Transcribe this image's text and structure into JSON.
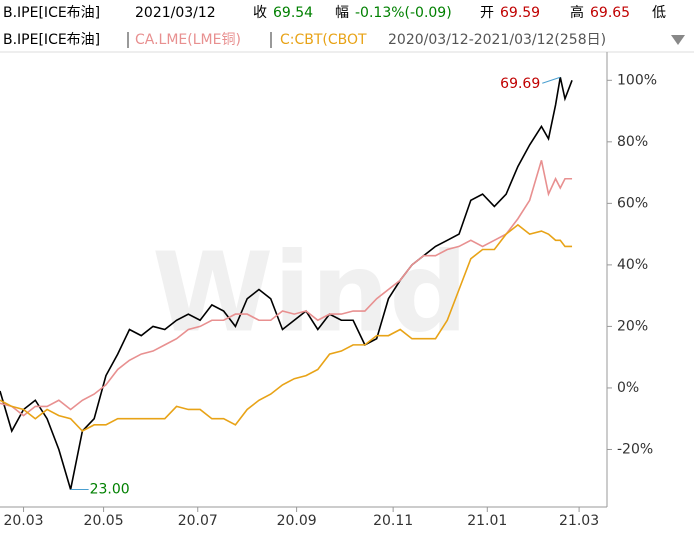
{
  "header": {
    "symbol": "B.IPE[ICE布油]",
    "date": "2021/03/12",
    "items": [
      {
        "label": "收",
        "value": "69.54",
        "color": "#008000"
      },
      {
        "label": "幅",
        "value": "-0.13%(-0.09)",
        "color": "#008000"
      },
      {
        "label": "开",
        "value": "69.59",
        "color": "#c00000"
      },
      {
        "label": "高",
        "value": "69.65",
        "color": "#c00000"
      }
    ],
    "trailing_label": "低"
  },
  "chart_data": {
    "type": "line",
    "range": "2020/03/12-2021/03/12(258日)",
    "watermark": "Wind",
    "x": [
      0,
      5,
      10,
      15,
      20,
      25,
      30,
      35,
      40,
      45,
      50,
      55,
      60,
      65,
      70,
      75,
      80,
      85,
      90,
      95,
      100,
      105,
      110,
      115,
      120,
      125,
      130,
      135,
      140,
      145,
      150,
      155,
      160,
      165,
      170,
      175,
      180,
      185,
      190,
      195,
      200,
      205,
      210,
      215,
      220,
      225,
      230,
      233,
      236,
      238,
      240,
      243
    ],
    "series": [
      {
        "name": "B.IPE[ICE布油]",
        "color": "#000000",
        "values": [
          -1,
          -14,
          -7,
          -4,
          -10,
          -20,
          -33,
          -14,
          -10,
          4,
          11,
          19,
          17,
          20,
          19,
          22,
          24,
          22,
          27,
          25,
          20,
          29,
          32,
          29,
          19,
          22,
          25,
          19,
          24,
          22,
          22,
          14,
          16,
          29,
          35,
          40,
          43,
          46,
          48,
          50,
          61,
          63,
          59,
          63,
          72,
          79,
          85,
          81,
          92,
          101,
          94,
          100
        ]
      },
      {
        "name": "CA.LME(LME铜)",
        "color": "#e89090",
        "values": [
          -5,
          -6,
          -9,
          -6,
          -6,
          -4,
          -7,
          -4,
          -2,
          1,
          6,
          9,
          11,
          12,
          14,
          16,
          19,
          20,
          22,
          22,
          24,
          24,
          22,
          22,
          25,
          24,
          25,
          22,
          24,
          24,
          25,
          25,
          29,
          32,
          35,
          40,
          43,
          43,
          45,
          46,
          48,
          46,
          48,
          50,
          55,
          61,
          74,
          63,
          68,
          65,
          68,
          68
        ]
      },
      {
        "name": "C:CBT(CBOT",
        "color": "#e8a317",
        "values": [
          -4,
          -6,
          -7,
          -10,
          -7,
          -9,
          -10,
          -14,
          -12,
          -12,
          -10,
          -10,
          -10,
          -10,
          -10,
          -6,
          -7,
          -7,
          -10,
          -10,
          -12,
          -7,
          -4,
          -2,
          1,
          3,
          4,
          6,
          11,
          12,
          14,
          14,
          17,
          17,
          19,
          16,
          16,
          16,
          22,
          32,
          42,
          45,
          45,
          50,
          53,
          50,
          51,
          50,
          48,
          48,
          46,
          46
        ]
      }
    ],
    "xlim": [
      0,
      257
    ],
    "xticks": [
      {
        "value": 10,
        "label": "20.03"
      },
      {
        "value": 44,
        "label": "20.05"
      },
      {
        "value": 84,
        "label": "20.07"
      },
      {
        "value": 126,
        "label": "20.09"
      },
      {
        "value": 167,
        "label": "20.11"
      },
      {
        "value": 207,
        "label": "21.01"
      },
      {
        "value": 246,
        "label": "21.03"
      }
    ],
    "ylim": [
      -38.7,
      109.2
    ],
    "yticks": [
      {
        "value": -20,
        "label": "-20%"
      },
      {
        "value": 0,
        "label": "0%"
      },
      {
        "value": 20,
        "label": "20%"
      },
      {
        "value": 40,
        "label": "40%"
      },
      {
        "value": 60,
        "label": "60%"
      },
      {
        "value": 80,
        "label": "80%"
      },
      {
        "value": 100,
        "label": "100%"
      }
    ],
    "annotations": {
      "max_label": "69.69",
      "max_color": "#c00000",
      "min_label": "23.00",
      "min_color": "#008000"
    }
  }
}
